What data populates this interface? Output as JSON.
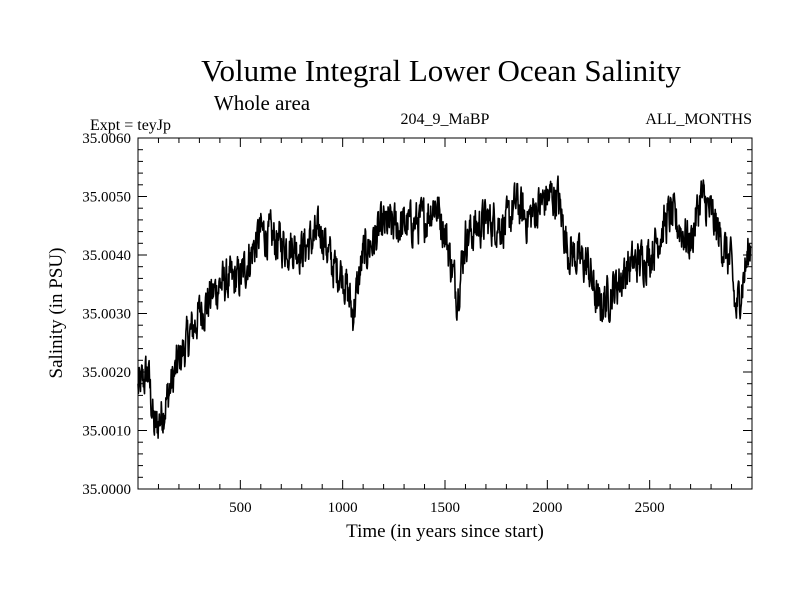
{
  "chart_data": {
    "type": "line",
    "title": "Volume Integral Lower Ocean Salinity",
    "subtitle": "Whole area",
    "header_left": "Expt = teyJp",
    "header_center": "204_9_MaBP",
    "header_right": "ALL_MONTHS",
    "xlabel": "Time (in years since start)",
    "ylabel": "Salinity (in PSU)",
    "xlim": [
      0,
      3000
    ],
    "ylim": [
      35.0,
      35.006
    ],
    "xticks": [
      500,
      1000,
      1500,
      2000,
      2500
    ],
    "xtick_labels": [
      "500",
      "1000",
      "1500",
      "2000",
      "2500"
    ],
    "yticks": [
      35.0,
      35.001,
      35.002,
      35.003,
      35.004,
      35.005,
      35.006
    ],
    "ytick_labels": [
      "35.0000",
      "35.0010",
      "35.0020",
      "35.0030",
      "35.0040",
      "35.0050",
      "35.0060"
    ],
    "grid": false,
    "series": [
      {
        "name": "Salinity",
        "color": "#000000",
        "trend_anchors": [
          [
            0,
            35.0017
          ],
          [
            50,
            35.002
          ],
          [
            80,
            35.001
          ],
          [
            120,
            35.0013
          ],
          [
            200,
            35.0022
          ],
          [
            300,
            35.003
          ],
          [
            400,
            35.0035
          ],
          [
            500,
            35.0036
          ],
          [
            600,
            35.0044
          ],
          [
            700,
            35.0042
          ],
          [
            800,
            35.0041
          ],
          [
            900,
            35.0044
          ],
          [
            950,
            35.0038
          ],
          [
            1000,
            35.0037
          ],
          [
            1050,
            35.003
          ],
          [
            1100,
            35.004
          ],
          [
            1200,
            35.0045
          ],
          [
            1300,
            35.0045
          ],
          [
            1400,
            35.0046
          ],
          [
            1450,
            35.0049
          ],
          [
            1500,
            35.0044
          ],
          [
            1560,
            35.0033
          ],
          [
            1600,
            35.0043
          ],
          [
            1700,
            35.0046
          ],
          [
            1800,
            35.0045
          ],
          [
            1850,
            35.0049
          ],
          [
            1900,
            35.0046
          ],
          [
            2000,
            35.005
          ],
          [
            2050,
            35.005
          ],
          [
            2100,
            35.0041
          ],
          [
            2200,
            35.0038
          ],
          [
            2250,
            35.0031
          ],
          [
            2300,
            35.0033
          ],
          [
            2400,
            35.0038
          ],
          [
            2500,
            35.004
          ],
          [
            2600,
            35.0047
          ],
          [
            2700,
            35.0042
          ],
          [
            2750,
            35.005
          ],
          [
            2800,
            35.0047
          ],
          [
            2900,
            35.0038
          ],
          [
            2920,
            35.003
          ],
          [
            3000,
            35.0043
          ]
        ],
        "noise_amplitude": 0.0004,
        "sample_step_years": 2
      }
    ]
  }
}
